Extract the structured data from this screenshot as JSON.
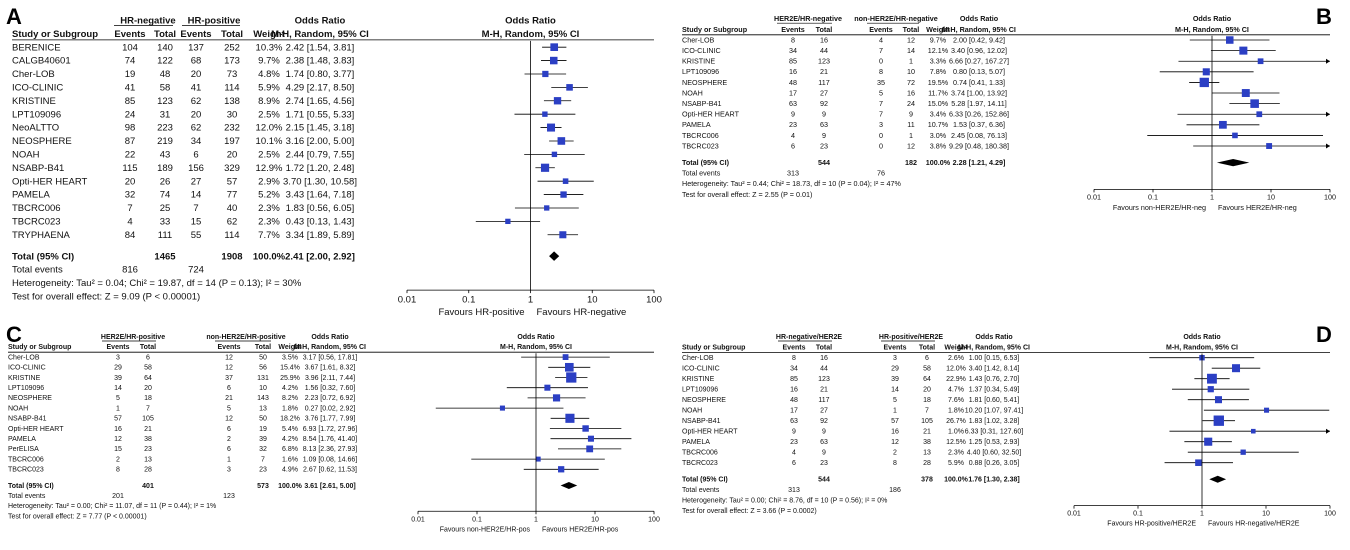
{
  "chart_data": [
    {
      "type": "forest",
      "panel": "A",
      "group1": "HR-negative",
      "group2": "HR-positive",
      "columns": [
        "Study or Subgroup",
        "Events",
        "Total",
        "Events",
        "Total",
        "Weight"
      ],
      "effect_header": "Odds Ratio",
      "effect_method": "M-H, Random, 95% CI",
      "plot_header": "Odds Ratio",
      "plot_method": "M-H, Random, 95% CI",
      "studies": [
        {
          "name": "BERENICE",
          "e1": "104",
          "t1": "140",
          "e2": "137",
          "t2": "252",
          "weight": "10.3%",
          "ci_text": "2.42 [1.54, 3.81]",
          "or": 2.42,
          "lo": 1.54,
          "hi": 3.81
        },
        {
          "name": "CALGB40601",
          "e1": "74",
          "t1": "122",
          "e2": "68",
          "t2": "173",
          "weight": "9.7%",
          "ci_text": "2.38 [1.48, 3.83]",
          "or": 2.38,
          "lo": 1.48,
          "hi": 3.83
        },
        {
          "name": "Cher-LOB",
          "e1": "19",
          "t1": "48",
          "e2": "20",
          "t2": "73",
          "weight": "4.8%",
          "ci_text": "1.74 [0.80, 3.77]",
          "or": 1.74,
          "lo": 0.8,
          "hi": 3.77
        },
        {
          "name": "ICO-CLINIC",
          "e1": "41",
          "t1": "58",
          "e2": "41",
          "t2": "114",
          "weight": "5.9%",
          "ci_text": "4.29 [2.17, 8.50]",
          "or": 4.29,
          "lo": 2.17,
          "hi": 8.5
        },
        {
          "name": "KRISTINE",
          "e1": "85",
          "t1": "123",
          "e2": "62",
          "t2": "138",
          "weight": "8.9%",
          "ci_text": "2.74 [1.65, 4.56]",
          "or": 2.74,
          "lo": 1.65,
          "hi": 4.56
        },
        {
          "name": "LPT109096",
          "e1": "24",
          "t1": "31",
          "e2": "20",
          "t2": "30",
          "weight": "2.5%",
          "ci_text": "1.71 [0.55, 5.33]",
          "or": 1.71,
          "lo": 0.55,
          "hi": 5.33
        },
        {
          "name": "NeoALTTO",
          "e1": "98",
          "t1": "223",
          "e2": "62",
          "t2": "232",
          "weight": "12.0%",
          "ci_text": "2.15 [1.45, 3.18]",
          "or": 2.15,
          "lo": 1.45,
          "hi": 3.18
        },
        {
          "name": "NEOSPHERE",
          "e1": "87",
          "t1": "219",
          "e2": "34",
          "t2": "197",
          "weight": "10.1%",
          "ci_text": "3.16 [2.00, 5.00]",
          "or": 3.16,
          "lo": 2.0,
          "hi": 5.0
        },
        {
          "name": "NOAH",
          "e1": "22",
          "t1": "43",
          "e2": "6",
          "t2": "20",
          "weight": "2.5%",
          "ci_text": "2.44 [0.79, 7.55]",
          "or": 2.44,
          "lo": 0.79,
          "hi": 7.55
        },
        {
          "name": "NSABP-B41",
          "e1": "115",
          "t1": "189",
          "e2": "156",
          "t2": "329",
          "weight": "12.9%",
          "ci_text": "1.72 [1.20, 2.48]",
          "or": 1.72,
          "lo": 1.2,
          "hi": 2.48
        },
        {
          "name": "Opti-HER HEART",
          "e1": "20",
          "t1": "26",
          "e2": "27",
          "t2": "57",
          "weight": "2.9%",
          "ci_text": "3.70 [1.30, 10.58]",
          "or": 3.7,
          "lo": 1.3,
          "hi": 10.58
        },
        {
          "name": "PAMELA",
          "e1": "32",
          "t1": "74",
          "e2": "14",
          "t2": "77",
          "weight": "5.2%",
          "ci_text": "3.43 [1.64, 7.18]",
          "or": 3.43,
          "lo": 1.64,
          "hi": 7.18
        },
        {
          "name": "TBCRC006",
          "e1": "7",
          "t1": "25",
          "e2": "7",
          "t2": "40",
          "weight": "2.3%",
          "ci_text": "1.83 [0.56, 6.05]",
          "or": 1.83,
          "lo": 0.56,
          "hi": 6.05
        },
        {
          "name": "TBCRC023",
          "e1": "4",
          "t1": "33",
          "e2": "15",
          "t2": "62",
          "weight": "2.3%",
          "ci_text": "0.43 [0.13, 1.43]",
          "or": 0.43,
          "lo": 0.13,
          "hi": 1.43
        },
        {
          "name": "TRYPHAENA",
          "e1": "84",
          "t1": "111",
          "e2": "55",
          "t2": "114",
          "weight": "7.7%",
          "ci_text": "3.34 [1.89, 5.89]",
          "or": 3.34,
          "lo": 1.89,
          "hi": 5.89
        }
      ],
      "total": {
        "label": "Total (95% CI)",
        "t1": "1465",
        "t2": "1908",
        "weight": "100.0%",
        "ci_text": "2.41 [2.00, 2.92]",
        "or": 2.41,
        "lo": 2.0,
        "hi": 2.92
      },
      "events": {
        "label": "Total events",
        "e1": "816",
        "e2": "724"
      },
      "heterogeneity": "Heterogeneity: Tau² = 0.04; Chi² = 19.87, df = 14 (P = 0.13); I² = 30%",
      "overall": "Test for overall effect: Z = 9.09 (P < 0.00001)",
      "axis": {
        "ticks": [
          0.01,
          0.1,
          1,
          10,
          100
        ],
        "tick_labels": [
          "0.01",
          "0.1",
          "1",
          "10",
          "100"
        ],
        "xlim": [
          0.01,
          100
        ],
        "scale": "log"
      },
      "favours_left": "Favours HR-positive",
      "favours_right": "Favours HR-negative"
    },
    {
      "type": "forest",
      "panel": "B",
      "group1": "HER2E/HR-negative",
      "group2": "non-HER2E/HR-negative",
      "columns": [
        "Study or Subgroup",
        "Events",
        "Total",
        "Events",
        "Total",
        "Weight"
      ],
      "effect_header": "Odds Ratio",
      "effect_method": "M-H, Random, 95% CI",
      "plot_header": "Odds Ratio",
      "plot_method": "M-H, Random, 95% CI",
      "studies": [
        {
          "name": "Cher-LOB",
          "e1": "8",
          "t1": "16",
          "e2": "4",
          "t2": "12",
          "weight": "9.7%",
          "ci_text": "2.00 [0.42, 9.42]",
          "or": 2.0,
          "lo": 0.42,
          "hi": 9.42
        },
        {
          "name": "ICO-CLINIC",
          "e1": "34",
          "t1": "44",
          "e2": "7",
          "t2": "14",
          "weight": "12.1%",
          "ci_text": "3.40 [0.96, 12.02]",
          "or": 3.4,
          "lo": 0.96,
          "hi": 12.02
        },
        {
          "name": "KRISTINE",
          "e1": "85",
          "t1": "123",
          "e2": "0",
          "t2": "1",
          "weight": "3.3%",
          "ci_text": "6.66 [0.27, 167.27]",
          "or": 6.66,
          "lo": 0.27,
          "hi": 167.27
        },
        {
          "name": "LPT109096",
          "e1": "16",
          "t1": "21",
          "e2": "8",
          "t2": "10",
          "weight": "7.8%",
          "ci_text": "0.80 [0.13, 5.07]",
          "or": 0.8,
          "lo": 0.13,
          "hi": 5.07
        },
        {
          "name": "NEOSPHERE",
          "e1": "48",
          "t1": "117",
          "e2": "35",
          "t2": "72",
          "weight": "19.5%",
          "ci_text": "0.74 [0.41, 1.33]",
          "or": 0.74,
          "lo": 0.41,
          "hi": 1.33
        },
        {
          "name": "NOAH",
          "e1": "17",
          "t1": "27",
          "e2": "5",
          "t2": "16",
          "weight": "11.7%",
          "ci_text": "3.74 [1.00, 13.92]",
          "or": 3.74,
          "lo": 1.0,
          "hi": 13.92
        },
        {
          "name": "NSABP-B41",
          "e1": "63",
          "t1": "92",
          "e2": "7",
          "t2": "24",
          "weight": "15.0%",
          "ci_text": "5.28 [1.97, 14.11]",
          "or": 5.28,
          "lo": 1.97,
          "hi": 14.11
        },
        {
          "name": "Opti-HER HEART",
          "e1": "9",
          "t1": "9",
          "e2": "7",
          "t2": "9",
          "weight": "3.4%",
          "ci_text": "6.33 [0.26, 152.86]",
          "or": 6.33,
          "lo": 0.26,
          "hi": 152.86
        },
        {
          "name": "PAMELA",
          "e1": "23",
          "t1": "63",
          "e2": "3",
          "t2": "11",
          "weight": "10.7%",
          "ci_text": "1.53 [0.37, 6.36]",
          "or": 1.53,
          "lo": 0.37,
          "hi": 6.36
        },
        {
          "name": "TBCRC006",
          "e1": "4",
          "t1": "9",
          "e2": "0",
          "t2": "1",
          "weight": "3.0%",
          "ci_text": "2.45 [0.08, 76.13]",
          "or": 2.45,
          "lo": 0.08,
          "hi": 76.13
        },
        {
          "name": "TBCRC023",
          "e1": "6",
          "t1": "23",
          "e2": "0",
          "t2": "12",
          "weight": "3.8%",
          "ci_text": "9.29 [0.48, 180.38]",
          "or": 9.29,
          "lo": 0.48,
          "hi": 180.38
        }
      ],
      "total": {
        "label": "Total (95% CI)",
        "t1": "544",
        "t2": "182",
        "weight": "100.0%",
        "ci_text": "2.28 [1.21, 4.29]",
        "or": 2.28,
        "lo": 1.21,
        "hi": 4.29
      },
      "events": {
        "label": "Total events",
        "e1": "313",
        "e2": "76"
      },
      "heterogeneity": "Heterogeneity: Tau² = 0.44; Chi² = 18.73, df = 10 (P = 0.04); I² = 47%",
      "overall": "Test for overall effect: Z = 2.55 (P = 0.01)",
      "axis": {
        "ticks": [
          0.01,
          0.1,
          1,
          10,
          100
        ],
        "tick_labels": [
          "0.01",
          "0.1",
          "1",
          "10",
          "100"
        ],
        "xlim": [
          0.01,
          100
        ],
        "scale": "log"
      },
      "favours_left": "Favours non-HER2E/HR-neg",
      "favours_right": "Favours HER2E/HR-neg"
    },
    {
      "type": "forest",
      "panel": "C",
      "group1": "HER2E/HR-positive",
      "group2": "non-HER2E/HR-positive",
      "columns": [
        "Study or Subgroup",
        "Events",
        "Total",
        "Events",
        "Total",
        "Weight"
      ],
      "effect_header": "Odds Ratio",
      "effect_method": "M-H, Random, 95% CI",
      "plot_header": "Odds Ratio",
      "plot_method": "M-H, Random, 95% CI",
      "studies": [
        {
          "name": "Cher-LOB",
          "e1": "3",
          "t1": "6",
          "e2": "12",
          "t2": "50",
          "weight": "3.5%",
          "ci_text": "3.17 [0.56, 17.81]",
          "or": 3.17,
          "lo": 0.56,
          "hi": 17.81
        },
        {
          "name": "ICO-CLINIC",
          "e1": "29",
          "t1": "58",
          "e2": "12",
          "t2": "56",
          "weight": "15.4%",
          "ci_text": "3.67 [1.61, 8.32]",
          "or": 3.67,
          "lo": 1.61,
          "hi": 8.32
        },
        {
          "name": "KRISTINE",
          "e1": "39",
          "t1": "64",
          "e2": "37",
          "t2": "131",
          "weight": "25.9%",
          "ci_text": "3.96 [2.11, 7.44]",
          "or": 3.96,
          "lo": 2.11,
          "hi": 7.44
        },
        {
          "name": "LPT109096",
          "e1": "14",
          "t1": "20",
          "e2": "6",
          "t2": "10",
          "weight": "4.2%",
          "ci_text": "1.56 [0.32, 7.60]",
          "or": 1.56,
          "lo": 0.32,
          "hi": 7.6
        },
        {
          "name": "NEOSPHERE",
          "e1": "5",
          "t1": "18",
          "e2": "21",
          "t2": "143",
          "weight": "8.2%",
          "ci_text": "2.23 [0.72, 6.92]",
          "or": 2.23,
          "lo": 0.72,
          "hi": 6.92
        },
        {
          "name": "NOAH",
          "e1": "1",
          "t1": "7",
          "e2": "5",
          "t2": "13",
          "weight": "1.8%",
          "ci_text": "0.27 [0.02, 2.92]",
          "or": 0.27,
          "lo": 0.02,
          "hi": 2.92
        },
        {
          "name": "NSABP-B41",
          "e1": "57",
          "t1": "105",
          "e2": "12",
          "t2": "50",
          "weight": "18.2%",
          "ci_text": "3.76 [1.77, 7.99]",
          "or": 3.76,
          "lo": 1.77,
          "hi": 7.99
        },
        {
          "name": "Opti-HER HEART",
          "e1": "16",
          "t1": "21",
          "e2": "6",
          "t2": "19",
          "weight": "5.4%",
          "ci_text": "6.93 [1.72, 27.96]",
          "or": 6.93,
          "lo": 1.72,
          "hi": 27.96
        },
        {
          "name": "PAMELA",
          "e1": "12",
          "t1": "38",
          "e2": "2",
          "t2": "39",
          "weight": "4.2%",
          "ci_text": "8.54 [1.76, 41.40]",
          "or": 8.54,
          "lo": 1.76,
          "hi": 41.4
        },
        {
          "name": "PerELISA",
          "e1": "15",
          "t1": "23",
          "e2": "6",
          "t2": "32",
          "weight": "6.8%",
          "ci_text": "8.13 [2.36, 27.93]",
          "or": 8.13,
          "lo": 2.36,
          "hi": 27.93
        },
        {
          "name": "TBCRC006",
          "e1": "2",
          "t1": "13",
          "e2": "1",
          "t2": "7",
          "weight": "1.6%",
          "ci_text": "1.09 [0.08, 14.66]",
          "or": 1.09,
          "lo": 0.08,
          "hi": 14.66
        },
        {
          "name": "TBCRC023",
          "e1": "8",
          "t1": "28",
          "e2": "3",
          "t2": "23",
          "weight": "4.9%",
          "ci_text": "2.67 [0.62, 11.53]",
          "or": 2.67,
          "lo": 0.62,
          "hi": 11.53
        }
      ],
      "total": {
        "label": "Total (95% CI)",
        "t1": "401",
        "t2": "573",
        "weight": "100.0%",
        "ci_text": "3.61 [2.61, 5.00]",
        "or": 3.61,
        "lo": 2.61,
        "hi": 5.0
      },
      "events": {
        "label": "Total events",
        "e1": "201",
        "e2": "123"
      },
      "heterogeneity": "Heterogeneity: Tau² = 0.00; Chi² = 11.07, df = 11 (P = 0.44); I² = 1%",
      "overall": "Test for overall effect: Z = 7.77 (P < 0.00001)",
      "axis": {
        "ticks": [
          0.01,
          0.1,
          1,
          10,
          100
        ],
        "tick_labels": [
          "0.01",
          "0.1",
          "1",
          "10",
          "100"
        ],
        "xlim": [
          0.01,
          100
        ],
        "scale": "log"
      },
      "favours_left": "Favours non-HER2E/HR-pos",
      "favours_right": "Favours HER2E/HR-pos"
    },
    {
      "type": "forest",
      "panel": "D",
      "group1": "HR-negative/HER2E",
      "group2": "HR-positive/HER2E",
      "columns": [
        "Study or Subgroup",
        "Events",
        "Total",
        "Events",
        "Total",
        "Weight"
      ],
      "effect_header": "Odds Ratio",
      "effect_method": "M-H, Random, 95% CI",
      "plot_header": "Odds Ratio",
      "plot_method": "M-H, Random, 95% CI",
      "studies": [
        {
          "name": "Cher-LOB",
          "e1": "8",
          "t1": "16",
          "e2": "3",
          "t2": "6",
          "weight": "2.6%",
          "ci_text": "1.00 [0.15, 6.53]",
          "or": 1.0,
          "lo": 0.15,
          "hi": 6.53
        },
        {
          "name": "ICO-CLINIC",
          "e1": "34",
          "t1": "44",
          "e2": "29",
          "t2": "58",
          "weight": "12.0%",
          "ci_text": "3.40 [1.42, 8.14]",
          "or": 3.4,
          "lo": 1.42,
          "hi": 8.14
        },
        {
          "name": "KRISTINE",
          "e1": "85",
          "t1": "123",
          "e2": "39",
          "t2": "64",
          "weight": "22.9%",
          "ci_text": "1.43 [0.76, 2.70]",
          "or": 1.43,
          "lo": 0.76,
          "hi": 2.7
        },
        {
          "name": "LPT109096",
          "e1": "16",
          "t1": "21",
          "e2": "14",
          "t2": "20",
          "weight": "4.7%",
          "ci_text": "1.37 [0.34, 5.49]",
          "or": 1.37,
          "lo": 0.34,
          "hi": 5.49
        },
        {
          "name": "NEOSPHERE",
          "e1": "48",
          "t1": "117",
          "e2": "5",
          "t2": "18",
          "weight": "7.6%",
          "ci_text": "1.81 [0.60, 5.41]",
          "or": 1.81,
          "lo": 0.6,
          "hi": 5.41
        },
        {
          "name": "NOAH",
          "e1": "17",
          "t1": "27",
          "e2": "1",
          "t2": "7",
          "weight": "1.8%",
          "ci_text": "10.20 [1.07, 97.41]",
          "or": 10.2,
          "lo": 1.07,
          "hi": 97.41
        },
        {
          "name": "NSABP-B41",
          "e1": "63",
          "t1": "92",
          "e2": "57",
          "t2": "105",
          "weight": "26.7%",
          "ci_text": "1.83 [1.02, 3.28]",
          "or": 1.83,
          "lo": 1.02,
          "hi": 3.28
        },
        {
          "name": "Opti-HER HEART",
          "e1": "9",
          "t1": "9",
          "e2": "16",
          "t2": "21",
          "weight": "1.0%",
          "ci_text": "6.33 [0.31, 127.60]",
          "or": 6.33,
          "lo": 0.31,
          "hi": 127.6
        },
        {
          "name": "PAMELA",
          "e1": "23",
          "t1": "63",
          "e2": "12",
          "t2": "38",
          "weight": "12.5%",
          "ci_text": "1.25 [0.53, 2.93]",
          "or": 1.25,
          "lo": 0.53,
          "hi": 2.93
        },
        {
          "name": "TBCRC006",
          "e1": "4",
          "t1": "9",
          "e2": "2",
          "t2": "13",
          "weight": "2.3%",
          "ci_text": "4.40 [0.60, 32.50]",
          "or": 4.4,
          "lo": 0.6,
          "hi": 32.5
        },
        {
          "name": "TBCRC023",
          "e1": "6",
          "t1": "23",
          "e2": "8",
          "t2": "28",
          "weight": "5.9%",
          "ci_text": "0.88 [0.26, 3.05]",
          "or": 0.88,
          "lo": 0.26,
          "hi": 3.05
        }
      ],
      "total": {
        "label": "Total (95% CI)",
        "t1": "544",
        "t2": "378",
        "weight": "100.0%",
        "ci_text": "1.76 [1.30, 2.38]",
        "or": 1.76,
        "lo": 1.3,
        "hi": 2.38
      },
      "events": {
        "label": "Total events",
        "e1": "313",
        "e2": "186"
      },
      "heterogeneity": "Heterogeneity: Tau² = 0.00; Chi² = 8.76, df = 10 (P = 0.56); I² = 0%",
      "overall": "Test for overall effect: Z = 3.66 (P = 0.0002)",
      "axis": {
        "ticks": [
          0.01,
          0.1,
          1,
          10,
          100
        ],
        "tick_labels": [
          "0.01",
          "0.1",
          "1",
          "10",
          "100"
        ],
        "xlim": [
          0.01,
          100
        ],
        "scale": "log"
      },
      "favours_left": "Favours HR-positive/HER2E",
      "favours_right": "Favours HR-negative/HER2E"
    }
  ],
  "colors": {
    "square": "#2b3fc4",
    "diamond": "#000000",
    "line": "#000000",
    "text": "#111111"
  }
}
